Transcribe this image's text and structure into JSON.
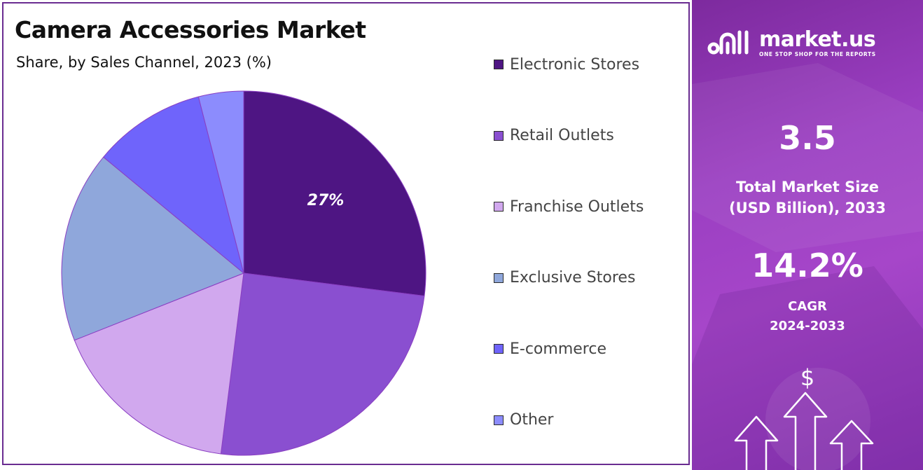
{
  "header": {
    "title": "Camera Accessories Market",
    "subtitle": "Share, by Sales Channel, 2023 (%)"
  },
  "chart_data": {
    "type": "pie",
    "title": "Camera Accessories Market",
    "subtitle": "Share, by Sales Channel, 2023 (%)",
    "categories": [
      "Electronic Stores",
      "Retail Outlets",
      "Franchise Outlets",
      "Exclusive Stores",
      "E-commerce",
      "Other"
    ],
    "values": [
      27,
      25,
      17,
      17,
      10,
      4
    ],
    "colors": [
      "#4e1583",
      "#8a4fd0",
      "#d1a8ee",
      "#8fa7db",
      "#6f64fb",
      "#8c8cfd"
    ],
    "data_labels": [
      "27%",
      "",
      "",
      "",
      "",
      ""
    ],
    "legend_position": "right",
    "start_angle_deg": 0,
    "direction": "clockwise"
  },
  "sidebar": {
    "brand_name": "market.us",
    "brand_tagline": "ONE STOP SHOP FOR THE REPORTS",
    "market_size_value": "3.5",
    "market_size_label_1": "Total Market Size",
    "market_size_label_2": "(USD Billion), 2033",
    "cagr_value": "14.2%",
    "cagr_label": "CAGR",
    "cagr_period": "2024-2033",
    "dollar_symbol": "$",
    "colors": {
      "background": "#9b3fc2",
      "text": "#ffffff"
    },
    "icons": [
      "market-us-logo-icon",
      "dollar-icon",
      "up-arrow-icon"
    ]
  }
}
